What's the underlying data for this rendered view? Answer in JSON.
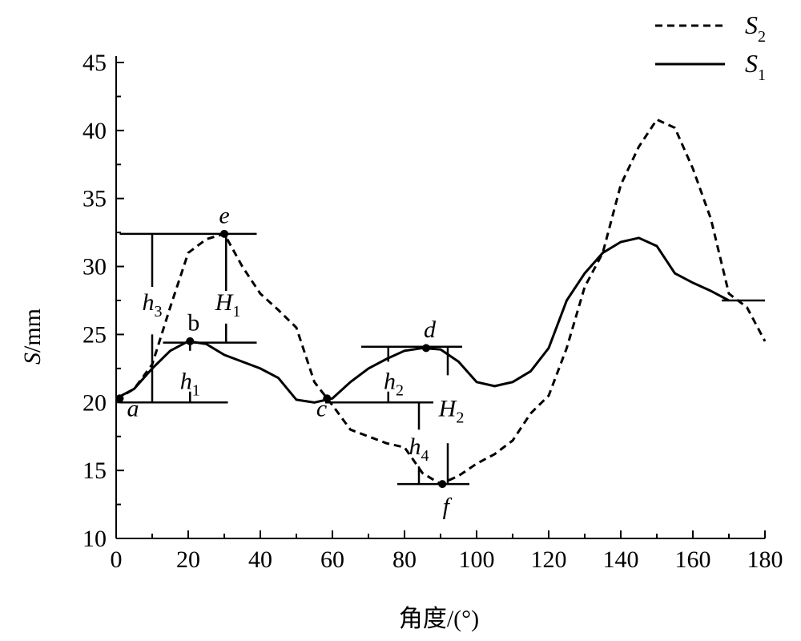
{
  "chart_data": {
    "type": "line",
    "xlabel": "角度/(°)",
    "ylabel_italic": "S",
    "ylabel_rest": "/mm",
    "xlim": [
      0,
      180
    ],
    "ylim": [
      10,
      45
    ],
    "xticks": [
      0,
      20,
      40,
      60,
      80,
      100,
      120,
      140,
      160,
      180
    ],
    "yticks": [
      10,
      15,
      20,
      25,
      30,
      35,
      40,
      45
    ],
    "legend_position": "top-right",
    "series": [
      {
        "name_main": "S",
        "name_sub": "2",
        "style": "dashed",
        "x": [
          0,
          5,
          10,
          15,
          20,
          25,
          30,
          35,
          40,
          45,
          50,
          55,
          60,
          65,
          70,
          75,
          80,
          85,
          90,
          95,
          100,
          105,
          110,
          115,
          120,
          125,
          130,
          135,
          140,
          145,
          150,
          155,
          160,
          165,
          170,
          175,
          180
        ],
        "y": [
          20.2,
          21.0,
          22.8,
          27.0,
          31.0,
          32.0,
          32.4,
          30.0,
          28.0,
          26.8,
          25.5,
          21.5,
          19.8,
          18.0,
          17.5,
          17.0,
          16.7,
          14.8,
          14.0,
          14.6,
          15.5,
          16.2,
          17.2,
          19.2,
          20.5,
          24.0,
          28.5,
          31.0,
          36.0,
          38.8,
          40.8,
          40.2,
          37.2,
          33.5,
          28.0,
          27.0,
          24.5
        ]
      },
      {
        "name_main": "S",
        "name_sub": "1",
        "style": "solid",
        "x": [
          0,
          5,
          10,
          15,
          20,
          25,
          30,
          35,
          40,
          45,
          50,
          55,
          60,
          65,
          70,
          75,
          80,
          85,
          90,
          95,
          100,
          105,
          110,
          115,
          120,
          125,
          130,
          135,
          140,
          145,
          150,
          155,
          160,
          165,
          170
        ],
        "y": [
          20.3,
          21.0,
          22.5,
          23.8,
          24.5,
          24.3,
          23.5,
          23.0,
          22.5,
          21.8,
          20.2,
          20.0,
          20.3,
          21.5,
          22.5,
          23.2,
          23.8,
          24.0,
          23.9,
          23.0,
          21.5,
          21.2,
          21.5,
          22.3,
          24.0,
          27.5,
          29.5,
          31.0,
          31.8,
          32.1,
          31.5,
          29.5,
          28.8,
          28.2,
          27.5
        ]
      }
    ],
    "points": [
      {
        "label": "a",
        "italic": true,
        "x": 1,
        "y": 20.3,
        "lx": 3,
        "ly": 19.0,
        "anchor": "start"
      },
      {
        "label": "b",
        "italic": false,
        "x": 20.5,
        "y": 24.5,
        "lx": 21.5,
        "ly": 25.3,
        "anchor": "middle"
      },
      {
        "label": "c",
        "italic": true,
        "x": 58.5,
        "y": 20.3,
        "lx": 57,
        "ly": 19.0,
        "anchor": "middle"
      },
      {
        "label": "d",
        "italic": true,
        "x": 86,
        "y": 24.0,
        "lx": 87,
        "ly": 24.8,
        "anchor": "middle"
      },
      {
        "label": "e",
        "italic": true,
        "x": 30,
        "y": 32.4,
        "lx": 30,
        "ly": 33.2,
        "anchor": "middle"
      },
      {
        "label": "f",
        "italic": true,
        "x": 90.5,
        "y": 14.0,
        "lx": 91.5,
        "ly": 11.8,
        "anchor": "middle"
      }
    ],
    "annotations": [
      {
        "main": "h",
        "sub": "3",
        "lx": 10,
        "ly": 26.8
      },
      {
        "main": "H",
        "sub": "1",
        "lx": 31,
        "ly": 26.8
      },
      {
        "main": "h",
        "sub": "1",
        "lx": 20.5,
        "ly": 21.0
      },
      {
        "main": "h",
        "sub": "2",
        "lx": 77,
        "ly": 21.0
      },
      {
        "main": "H",
        "sub": "2",
        "lx": 93,
        "ly": 19.0
      },
      {
        "main": "h",
        "sub": "4",
        "lx": 84,
        "ly": 16.2
      }
    ],
    "reference_lines": {
      "horizontal": [
        {
          "y": 20.0,
          "x1": 1,
          "x2": 31
        },
        {
          "y": 24.4,
          "x1": 13,
          "x2": 39
        },
        {
          "y": 32.4,
          "x1": 1,
          "x2": 39
        },
        {
          "y": 20.0,
          "x1": 58,
          "x2": 88
        },
        {
          "y": 24.1,
          "x1": 68,
          "x2": 96
        },
        {
          "y": 14.0,
          "x1": 78,
          "x2": 98
        },
        {
          "y": 27.5,
          "x1": 168,
          "x2": 180
        }
      ],
      "vertical": [
        {
          "x": 10,
          "y1": 20.0,
          "y2": 25.0
        },
        {
          "x": 10,
          "y1": 28.5,
          "y2": 32.4
        },
        {
          "x": 20.5,
          "y1": 20.0,
          "y2": 20.8
        },
        {
          "x": 20.5,
          "y1": 23.8,
          "y2": 24.5
        },
        {
          "x": 30.5,
          "y1": 24.4,
          "y2": 25.8
        },
        {
          "x": 30.5,
          "y1": 28.2,
          "y2": 32.4
        },
        {
          "x": 75.5,
          "y1": 20.0,
          "y2": 20.8
        },
        {
          "x": 75.5,
          "y1": 23.0,
          "y2": 24.1
        },
        {
          "x": 84,
          "y1": 18.0,
          "y2": 20.0
        },
        {
          "x": 84,
          "y1": 14.0,
          "y2": 15.3
        },
        {
          "x": 92,
          "y1": 14.0,
          "y2": 17.0
        },
        {
          "x": 92,
          "y1": 22.0,
          "y2": 24.1
        }
      ]
    }
  }
}
